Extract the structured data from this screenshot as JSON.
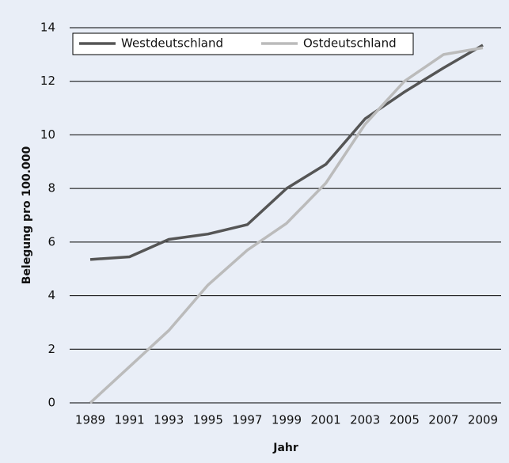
{
  "chart_data": {
    "type": "line",
    "x_label": "Jahr",
    "y_label": "Belegung pro 100.000",
    "categories": [
      "1989",
      "1991",
      "1993",
      "1995",
      "1997",
      "1999",
      "2001",
      "2003",
      "2005",
      "2007",
      "2009"
    ],
    "series": [
      {
        "name": "Westdeutschland",
        "color": "#555555",
        "values": [
          5.35,
          5.45,
          6.1,
          6.3,
          6.65,
          8.0,
          8.9,
          10.6,
          11.6,
          12.5,
          13.35
        ]
      },
      {
        "name": "Ostdeutschland",
        "color": "#bbbbbb",
        "values": [
          0,
          1.35,
          2.7,
          4.4,
          5.7,
          6.7,
          8.2,
          10.4,
          12.0,
          13.0,
          13.25
        ]
      }
    ],
    "ylim": [
      0,
      14
    ],
    "yticks": [
      0,
      2,
      4,
      6,
      8,
      10,
      12,
      14
    ],
    "grid": true,
    "legend": "top"
  }
}
